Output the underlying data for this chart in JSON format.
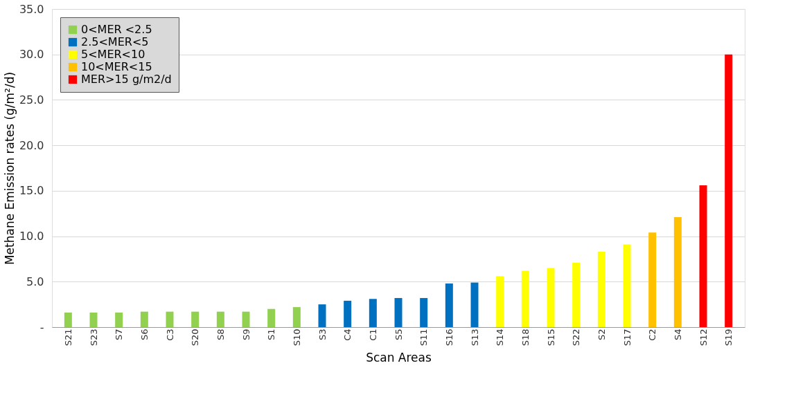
{
  "chart_data": {
    "type": "bar",
    "xlabel": "Scan Areas",
    "ylabel": "Methane Emission rates (g/m²/d)",
    "categories": [
      "S21",
      "S23",
      "S7",
      "S6",
      "C3",
      "S20",
      "S8",
      "S9",
      "S1",
      "S10",
      "S3",
      "C4",
      "C1",
      "S5",
      "S11",
      "S16",
      "S13",
      "S14",
      "S18",
      "S15",
      "S22",
      "S2",
      "S17",
      "C2",
      "S4",
      "S12",
      "S19"
    ],
    "series": [
      {
        "name": "0<MER <2.5",
        "color": "#92d050",
        "values": [
          1.6,
          1.6,
          1.6,
          1.7,
          1.7,
          1.7,
          1.7,
          1.7,
          2.0,
          2.2,
          null,
          null,
          null,
          null,
          null,
          null,
          null,
          null,
          null,
          null,
          null,
          null,
          null,
          null,
          null,
          null,
          null
        ]
      },
      {
        "name": "2.5<MER<5",
        "color": "#0070c0",
        "values": [
          null,
          null,
          null,
          null,
          null,
          null,
          null,
          null,
          null,
          null,
          2.5,
          2.9,
          3.1,
          3.2,
          3.2,
          4.8,
          4.9,
          null,
          null,
          null,
          null,
          null,
          null,
          null,
          null,
          null,
          null
        ]
      },
      {
        "name": "5<MER<10",
        "color": "#ffff00",
        "values": [
          null,
          null,
          null,
          null,
          null,
          null,
          null,
          null,
          null,
          null,
          null,
          null,
          null,
          null,
          null,
          null,
          null,
          5.6,
          6.2,
          6.5,
          7.1,
          8.3,
          9.1,
          null,
          null,
          null,
          null
        ]
      },
      {
        "name": "10<MER<15",
        "color": "#ffc000",
        "values": [
          null,
          null,
          null,
          null,
          null,
          null,
          null,
          null,
          null,
          null,
          null,
          null,
          null,
          null,
          null,
          null,
          null,
          null,
          null,
          null,
          null,
          null,
          null,
          10.4,
          12.1,
          null,
          null
        ]
      },
      {
        "name": "MER>15 g/m2/d",
        "color": "#ff0000",
        "values": [
          null,
          null,
          null,
          null,
          null,
          null,
          null,
          null,
          null,
          null,
          null,
          null,
          null,
          null,
          null,
          null,
          null,
          null,
          null,
          null,
          null,
          null,
          null,
          null,
          null,
          15.6,
          30.0
        ]
      }
    ],
    "ylim": [
      0,
      35
    ],
    "yticks": [
      {
        "value": 0,
        "label": "-"
      },
      {
        "value": 5,
        "label": "5.0"
      },
      {
        "value": 10,
        "label": "10.0"
      },
      {
        "value": 15,
        "label": "15.0"
      },
      {
        "value": 20,
        "label": "20.0"
      },
      {
        "value": 25,
        "label": "25.0"
      },
      {
        "value": 30,
        "label": "30.0"
      },
      {
        "value": 35,
        "label": "35.0"
      }
    ],
    "grid": "y",
    "legend": "top left"
  }
}
